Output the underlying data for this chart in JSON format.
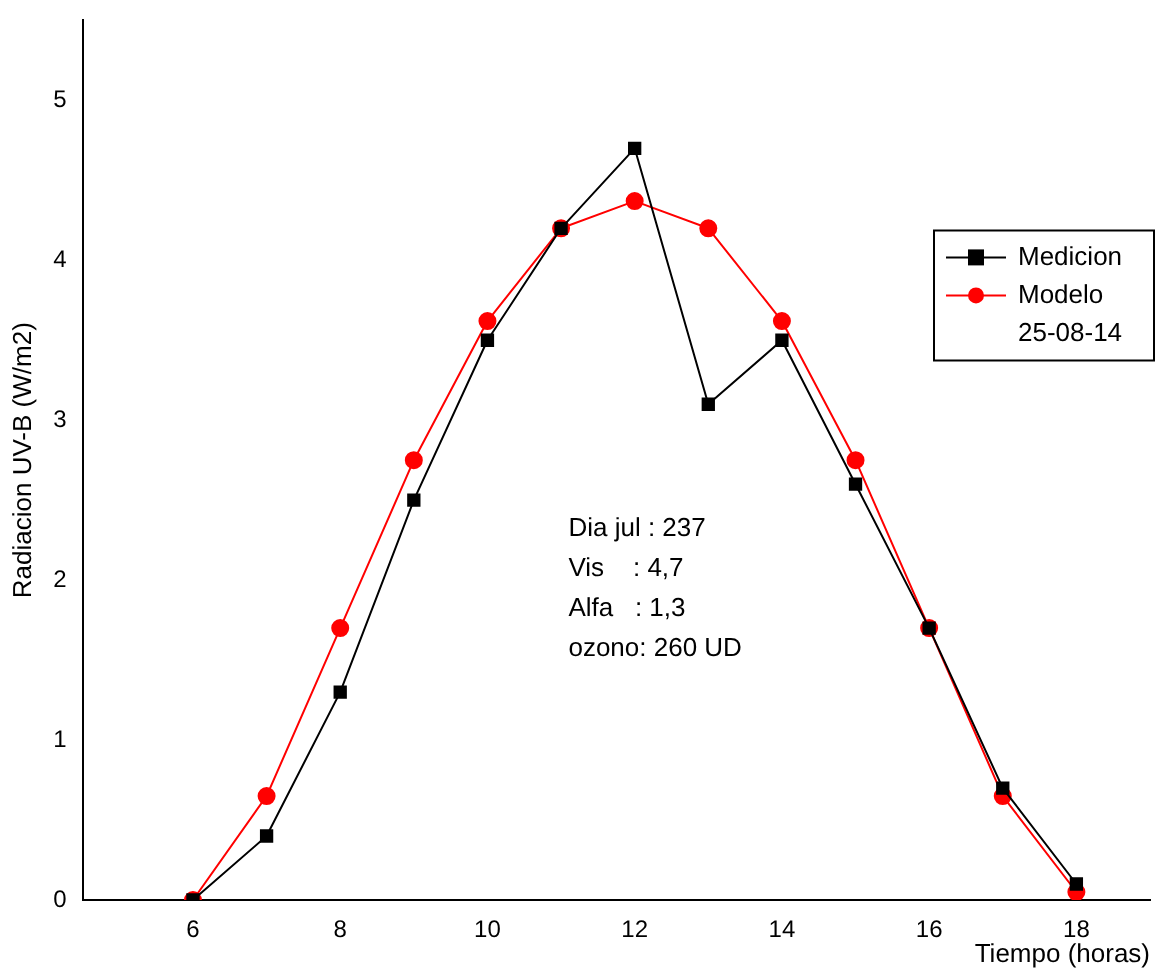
{
  "chart_data": {
    "type": "line",
    "xlabel": "Tiempo (horas)",
    "ylabel": "Radiacion UV-B (W/m2)",
    "x": [
      6,
      7,
      8,
      9,
      10,
      11,
      12,
      13,
      14,
      15,
      16,
      17,
      18
    ],
    "series": [
      {
        "name": "Medicion",
        "color": "#000000",
        "marker": "square",
        "values": [
          0,
          0.4,
          1.3,
          2.5,
          3.5,
          4.2,
          4.7,
          3.1,
          3.5,
          2.6,
          1.7,
          0.7,
          0.1
        ]
      },
      {
        "name": "Modelo",
        "color": "#ff0000",
        "marker": "circle",
        "values": [
          0,
          0.65,
          1.7,
          2.75,
          3.62,
          4.2,
          4.37,
          4.2,
          3.62,
          2.75,
          1.7,
          0.65,
          0.05
        ]
      }
    ],
    "xlim": [
      4.5,
      19
    ],
    "xticks": [
      6,
      8,
      10,
      12,
      14,
      16,
      18
    ],
    "ylim": [
      0,
      5.5
    ],
    "yticks": [
      0,
      1,
      2,
      3,
      4,
      5
    ],
    "grid": false,
    "legend": "right",
    "legend_title": "25-08-14",
    "annotations": [
      "Dia jul : 237",
      "Vis    : 4,7",
      "Alfa   : 1,3",
      "ozono: 260 UD"
    ]
  }
}
